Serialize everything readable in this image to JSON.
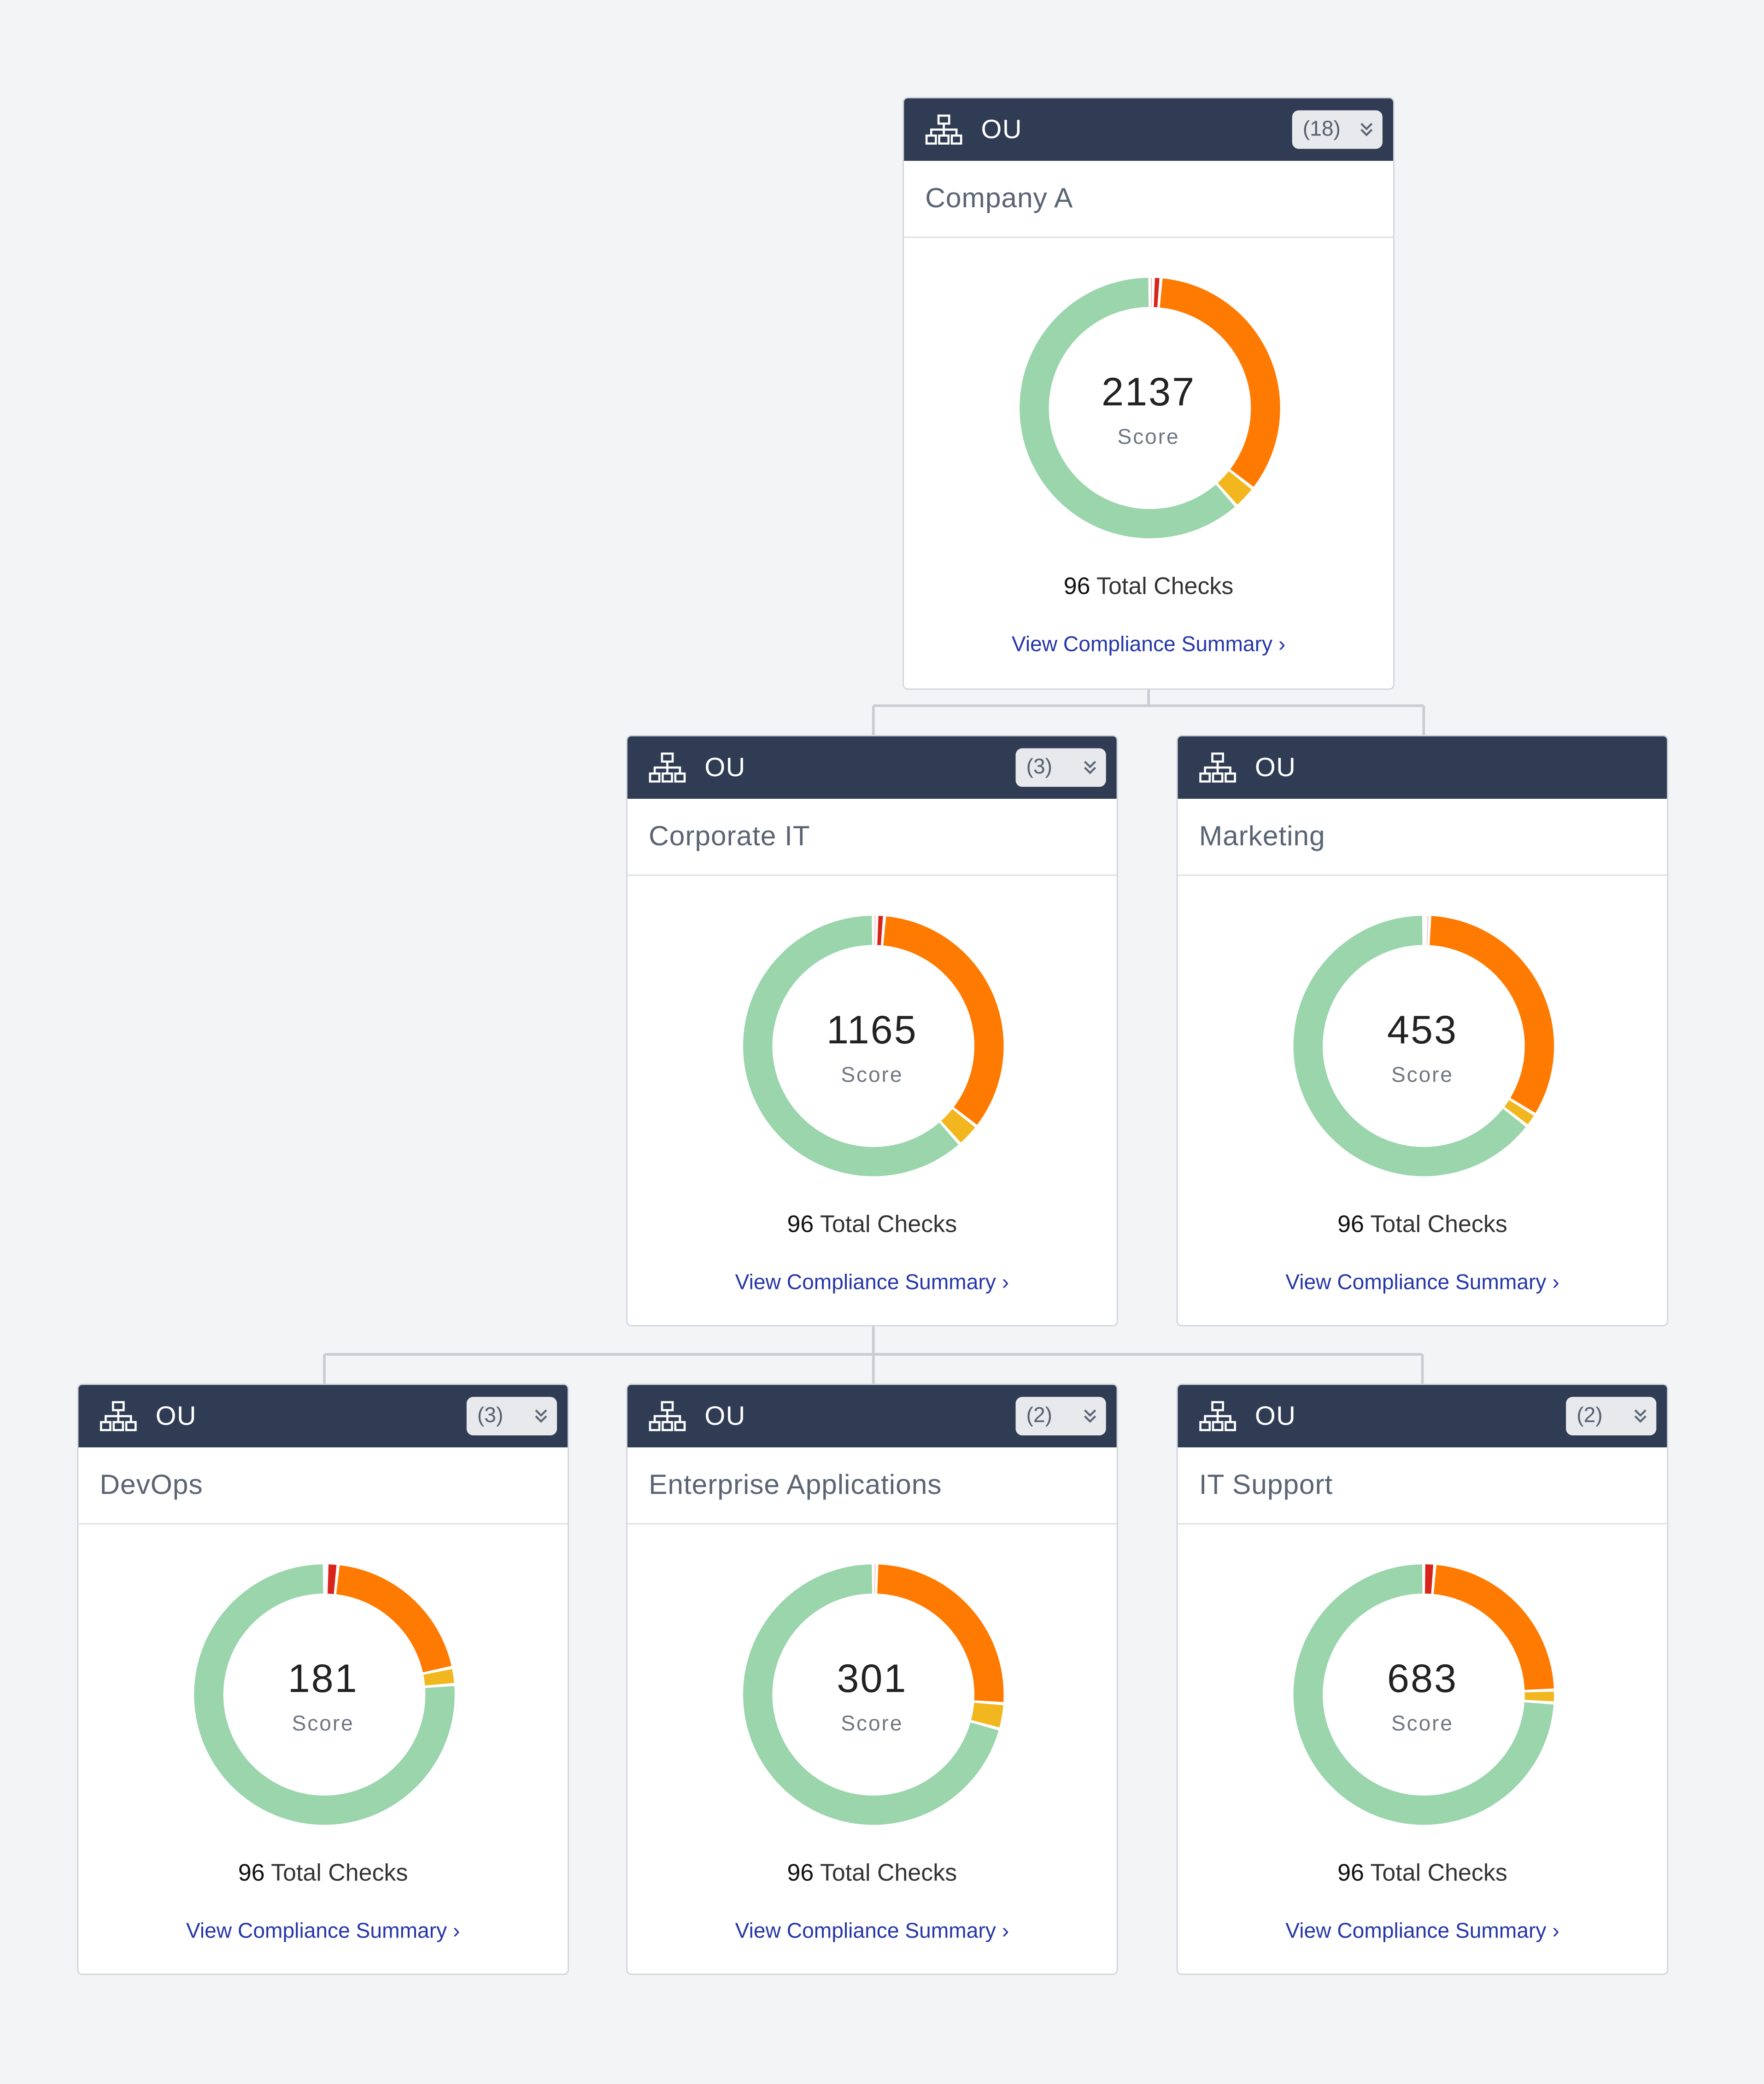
{
  "ou_type_label": "OU",
  "score_label": "Score",
  "total_checks_suffix": "Total Checks",
  "view_link_label": "View Compliance Summary",
  "link_chevron": "›",
  "colors": {
    "header_bg": "#2f3c54",
    "pass": "#9ad5ac",
    "warning": "#f29b18",
    "high": "#ff7a00",
    "critical": "#d8251c",
    "link": "#2536a8"
  },
  "nodes": [
    {
      "id": "company-a",
      "name": "Company A",
      "count": "(18)",
      "score": "2137",
      "total_checks": "96",
      "segments": [
        {
          "color": "#d8251c",
          "value": 0.4
        },
        {
          "color": "#d8251c",
          "value": 0.9
        },
        {
          "color": "#ff7a00",
          "value": 32.5
        },
        {
          "color": "#f2b61f",
          "value": 2.8
        },
        {
          "color": "#9ad5ac",
          "value": 58.5
        }
      ]
    },
    {
      "id": "corporate-it",
      "name": "Corporate IT",
      "count": "(3)",
      "score": "1165",
      "total_checks": "96",
      "segments": [
        {
          "color": "#d8251c",
          "value": 0.4
        },
        {
          "color": "#d8251c",
          "value": 0.9
        },
        {
          "color": "#ff7a00",
          "value": 32.5
        },
        {
          "color": "#f2b61f",
          "value": 2.8
        },
        {
          "color": "#9ad5ac",
          "value": 58.5
        }
      ]
    },
    {
      "id": "marketing",
      "name": "Marketing",
      "count": "",
      "score": "453",
      "total_checks": "96",
      "segments": [
        {
          "color": "#d8251c",
          "value": 0.3
        },
        {
          "color": "#d8251c",
          "value": 0.4
        },
        {
          "color": "#ff7a00",
          "value": 31.5
        },
        {
          "color": "#f2b61f",
          "value": 1.6
        },
        {
          "color": "#9ad5ac",
          "value": 61.5
        }
      ]
    },
    {
      "id": "devops",
      "name": "DevOps",
      "count": "(3)",
      "score": "181",
      "total_checks": "96",
      "segments": [
        {
          "color": "#d8251c",
          "value": 0.3
        },
        {
          "color": "#d8251c",
          "value": 1.3
        },
        {
          "color": "#ff7a00",
          "value": 19.0
        },
        {
          "color": "#f2b61f",
          "value": 2.0
        },
        {
          "color": "#9ad5ac",
          "value": 72.5
        }
      ]
    },
    {
      "id": "enterprise-applications",
      "name": "Enterprise Applications",
      "count": "(2)",
      "score": "301",
      "total_checks": "96",
      "segments": [
        {
          "color": "#d8251c",
          "value": 0.4
        },
        {
          "color": "#d8251c",
          "value": 0.0
        },
        {
          "color": "#ff7a00",
          "value": 24.5
        },
        {
          "color": "#f2b61f",
          "value": 3.0
        },
        {
          "color": "#9ad5ac",
          "value": 67.5
        }
      ]
    },
    {
      "id": "it-support",
      "name": "IT Support",
      "count": "(2)",
      "score": "683",
      "total_checks": "96",
      "segments": [
        {
          "color": "#d8251c",
          "value": 0.0
        },
        {
          "color": "#d8251c",
          "value": 1.3
        },
        {
          "color": "#ff7a00",
          "value": 22.0
        },
        {
          "color": "#f2b61f",
          "value": 1.5
        },
        {
          "color": "#9ad5ac",
          "value": 70.5
        }
      ]
    }
  ]
}
